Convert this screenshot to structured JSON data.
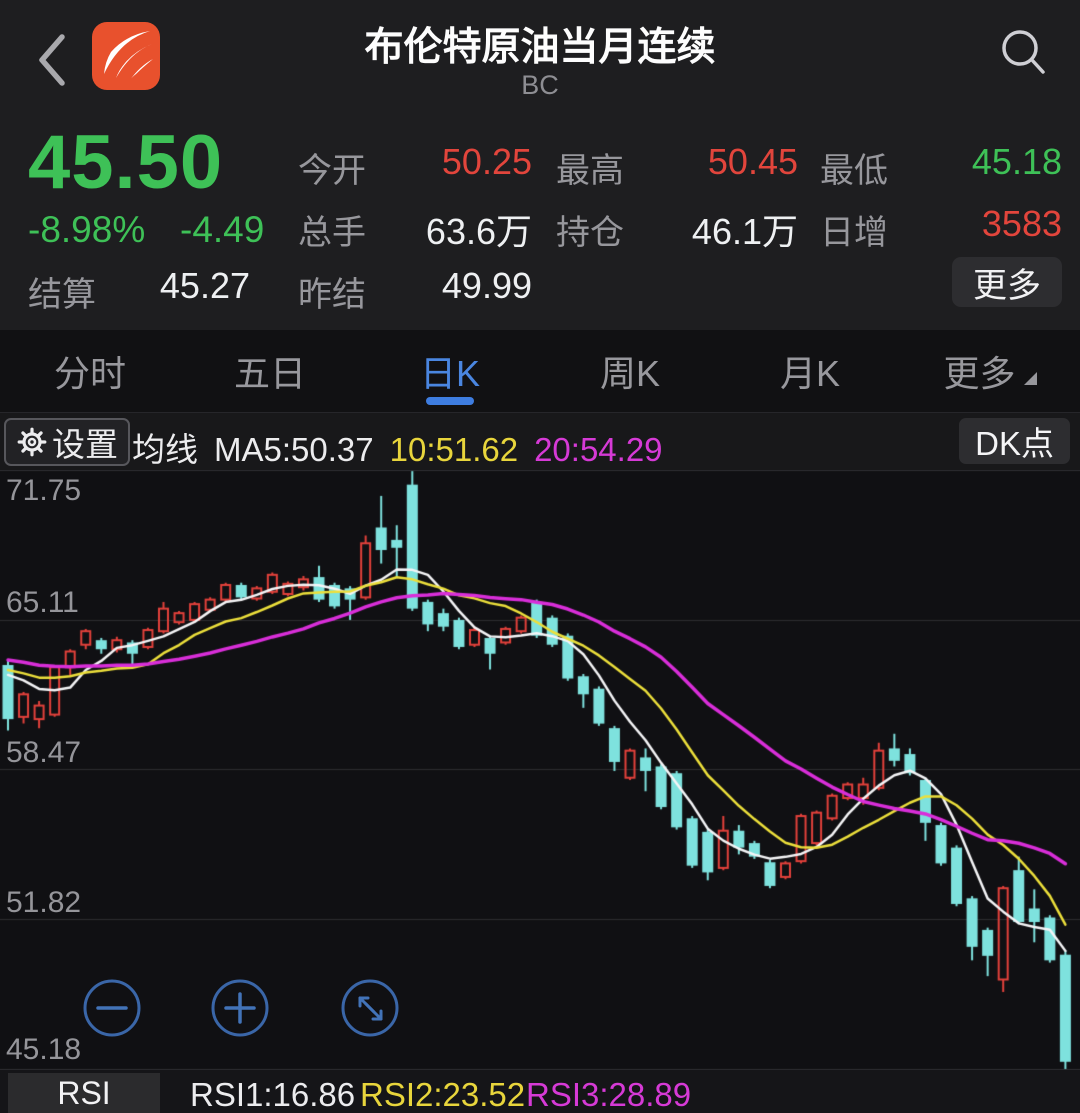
{
  "header": {
    "title": "布伦特原油当月连续",
    "subtitle": "BC"
  },
  "quote": {
    "price": "45.50",
    "change_pct": "-8.98%",
    "change_abs": "-4.49",
    "settle_label": "结算",
    "settle_value": "45.27",
    "open_label": "今开",
    "open_value": "50.25",
    "high_label": "最高",
    "high_value": "50.45",
    "low_label": "最低",
    "low_value": "45.18",
    "volume_label": "总手",
    "volume_value": "63.6万",
    "oi_label": "持仓",
    "oi_value": "46.1万",
    "incr_label": "日增",
    "incr_value": "3583",
    "prev_settle_label": "昨结",
    "prev_settle_value": "49.99",
    "more_label": "更多"
  },
  "tabs": [
    {
      "label": "分时",
      "active": false
    },
    {
      "label": "五日",
      "active": false
    },
    {
      "label": "日K",
      "active": true
    },
    {
      "label": "周K",
      "active": false
    },
    {
      "label": "月K",
      "active": false
    },
    {
      "label": "更多",
      "active": false,
      "caret": true
    }
  ],
  "indicator_bar": {
    "settings_label": "设置",
    "ma_group_label": "均线",
    "ma5": "MA5:50.37",
    "ma10": "10:51.62",
    "ma20": "20:54.29",
    "dk_label": "DK点"
  },
  "rsi_bar": {
    "button": "RSI",
    "rsi1": "RSI1:16.86",
    "rsi2": "RSI2:23.52",
    "rsi3": "RSI3:28.89"
  },
  "colors": {
    "accent_blue": "#4a86e0",
    "up_red": "#e2453c",
    "down_green": "#3ec157",
    "ma5_white": "#f5f5f7",
    "ma10_yellow": "#ecdf3b",
    "ma20_magenta": "#d92ed9",
    "logo_orange": "#e8512d"
  },
  "chart_data": {
    "type": "candlestick",
    "title": "布伦特原油当月连续 日K",
    "ylim": [
      45.18,
      71.75
    ],
    "y_axis_labels": [
      71.75,
      65.11,
      58.47,
      51.82,
      45.18
    ],
    "grid": true,
    "x_start": 8,
    "x_step": 15.55,
    "body_width": 11,
    "colors": {
      "up": "#e3413b",
      "down": "#7ee2de"
    },
    "ma_lines": [
      {
        "name": "MA5",
        "period": 5,
        "color": "#f5f5f7",
        "width": 2.5,
        "latest": 50.37
      },
      {
        "name": "MA10",
        "period": 10,
        "color": "#ecdf3b",
        "width": 2.5,
        "latest": 51.62
      },
      {
        "name": "MA20",
        "period": 20,
        "color": "#d92ed9",
        "width": 3.5,
        "latest": 54.29
      }
    ],
    "ma_seed_closes": [
      63.8,
      63.9,
      64.0,
      64.0,
      63.9,
      63.8,
      63.7,
      63.6,
      63.5,
      63.4,
      63.3,
      63.2,
      63.1,
      63.0,
      62.9,
      63.0,
      63.2,
      63.3,
      63.1
    ],
    "candles": [
      [
        63.1,
        63.3,
        60.2,
        60.7
      ],
      [
        60.8,
        61.9,
        60.5,
        61.8
      ],
      [
        60.7,
        61.5,
        60.3,
        61.3
      ],
      [
        60.9,
        63.1,
        60.8,
        63.0
      ],
      [
        63.0,
        63.8,
        62.6,
        63.7
      ],
      [
        64.0,
        64.7,
        63.8,
        64.6
      ],
      [
        64.2,
        64.3,
        63.6,
        63.8
      ],
      [
        63.8,
        64.35,
        63.65,
        64.2
      ],
      [
        64.1,
        64.2,
        63.0,
        63.6
      ],
      [
        63.9,
        64.75,
        63.8,
        64.65
      ],
      [
        64.6,
        65.9,
        64.5,
        65.6
      ],
      [
        65.0,
        65.5,
        64.9,
        65.4
      ],
      [
        65.1,
        65.9,
        65.0,
        65.8
      ],
      [
        65.55,
        66.1,
        65.45,
        66.0
      ],
      [
        66.0,
        66.75,
        65.9,
        66.65
      ],
      [
        66.65,
        66.75,
        66.0,
        66.1
      ],
      [
        66.05,
        66.6,
        65.95,
        66.5
      ],
      [
        66.35,
        67.2,
        66.25,
        67.1
      ],
      [
        66.25,
        66.8,
        66.15,
        66.7
      ],
      [
        66.55,
        67.05,
        66.4,
        66.9
      ],
      [
        67.0,
        67.5,
        65.9,
        66.0
      ],
      [
        66.65,
        66.75,
        65.6,
        65.7
      ],
      [
        66.5,
        66.6,
        65.1,
        66.0
      ],
      [
        66.1,
        68.85,
        66.0,
        68.5
      ],
      [
        69.2,
        70.6,
        67.6,
        68.2
      ],
      [
        68.65,
        69.3,
        67.0,
        68.3
      ],
      [
        71.1,
        71.7,
        65.5,
        65.6
      ],
      [
        65.9,
        66.0,
        64.6,
        64.9
      ],
      [
        65.4,
        65.6,
        64.6,
        64.8
      ],
      [
        65.1,
        65.2,
        63.8,
        63.9
      ],
      [
        64.0,
        64.8,
        63.9,
        64.65
      ],
      [
        64.3,
        64.4,
        62.9,
        63.6
      ],
      [
        64.1,
        64.8,
        64.0,
        64.7
      ],
      [
        64.6,
        65.3,
        64.5,
        65.2
      ],
      [
        65.9,
        66.0,
        64.3,
        64.4
      ],
      [
        65.2,
        65.3,
        63.9,
        64.0
      ],
      [
        64.4,
        64.5,
        62.4,
        62.5
      ],
      [
        62.6,
        62.7,
        61.2,
        61.8
      ],
      [
        62.05,
        62.15,
        60.4,
        60.5
      ],
      [
        60.3,
        60.4,
        58.4,
        58.8
      ],
      [
        58.1,
        59.4,
        58.0,
        59.3
      ],
      [
        59.0,
        59.4,
        57.5,
        58.4
      ],
      [
        58.6,
        58.7,
        56.7,
        56.8
      ],
      [
        58.3,
        58.4,
        55.8,
        55.9
      ],
      [
        56.3,
        56.4,
        54.1,
        54.2
      ],
      [
        55.7,
        55.8,
        53.55,
        53.9
      ],
      [
        54.1,
        56.4,
        54.0,
        55.75
      ],
      [
        55.75,
        56.0,
        54.7,
        55.0
      ],
      [
        55.2,
        55.3,
        54.5,
        54.6
      ],
      [
        54.35,
        54.45,
        53.2,
        53.3
      ],
      [
        53.7,
        54.4,
        53.6,
        54.3
      ],
      [
        54.4,
        56.5,
        54.3,
        56.4
      ],
      [
        55.2,
        56.65,
        55.1,
        56.55
      ],
      [
        56.3,
        57.4,
        56.2,
        57.3
      ],
      [
        57.2,
        57.9,
        57.1,
        57.8
      ],
      [
        57.2,
        58.1,
        56.9,
        57.8
      ],
      [
        57.65,
        59.65,
        57.55,
        59.3
      ],
      [
        59.4,
        60.05,
        58.6,
        58.85
      ],
      [
        59.15,
        59.4,
        58.2,
        58.3
      ],
      [
        58.0,
        58.1,
        55.3,
        56.1
      ],
      [
        56.0,
        56.1,
        54.2,
        54.3
      ],
      [
        55.0,
        55.1,
        52.4,
        52.5
      ],
      [
        52.75,
        52.85,
        50.0,
        50.6
      ],
      [
        51.35,
        51.45,
        49.3,
        50.2
      ],
      [
        49.15,
        53.3,
        48.6,
        53.2
      ],
      [
        54.0,
        54.6,
        51.6,
        51.7
      ],
      [
        52.3,
        53.15,
        50.8,
        51.7
      ],
      [
        51.9,
        52.0,
        49.9,
        50.0
      ],
      [
        50.25,
        50.45,
        45.18,
        45.5
      ]
    ]
  }
}
